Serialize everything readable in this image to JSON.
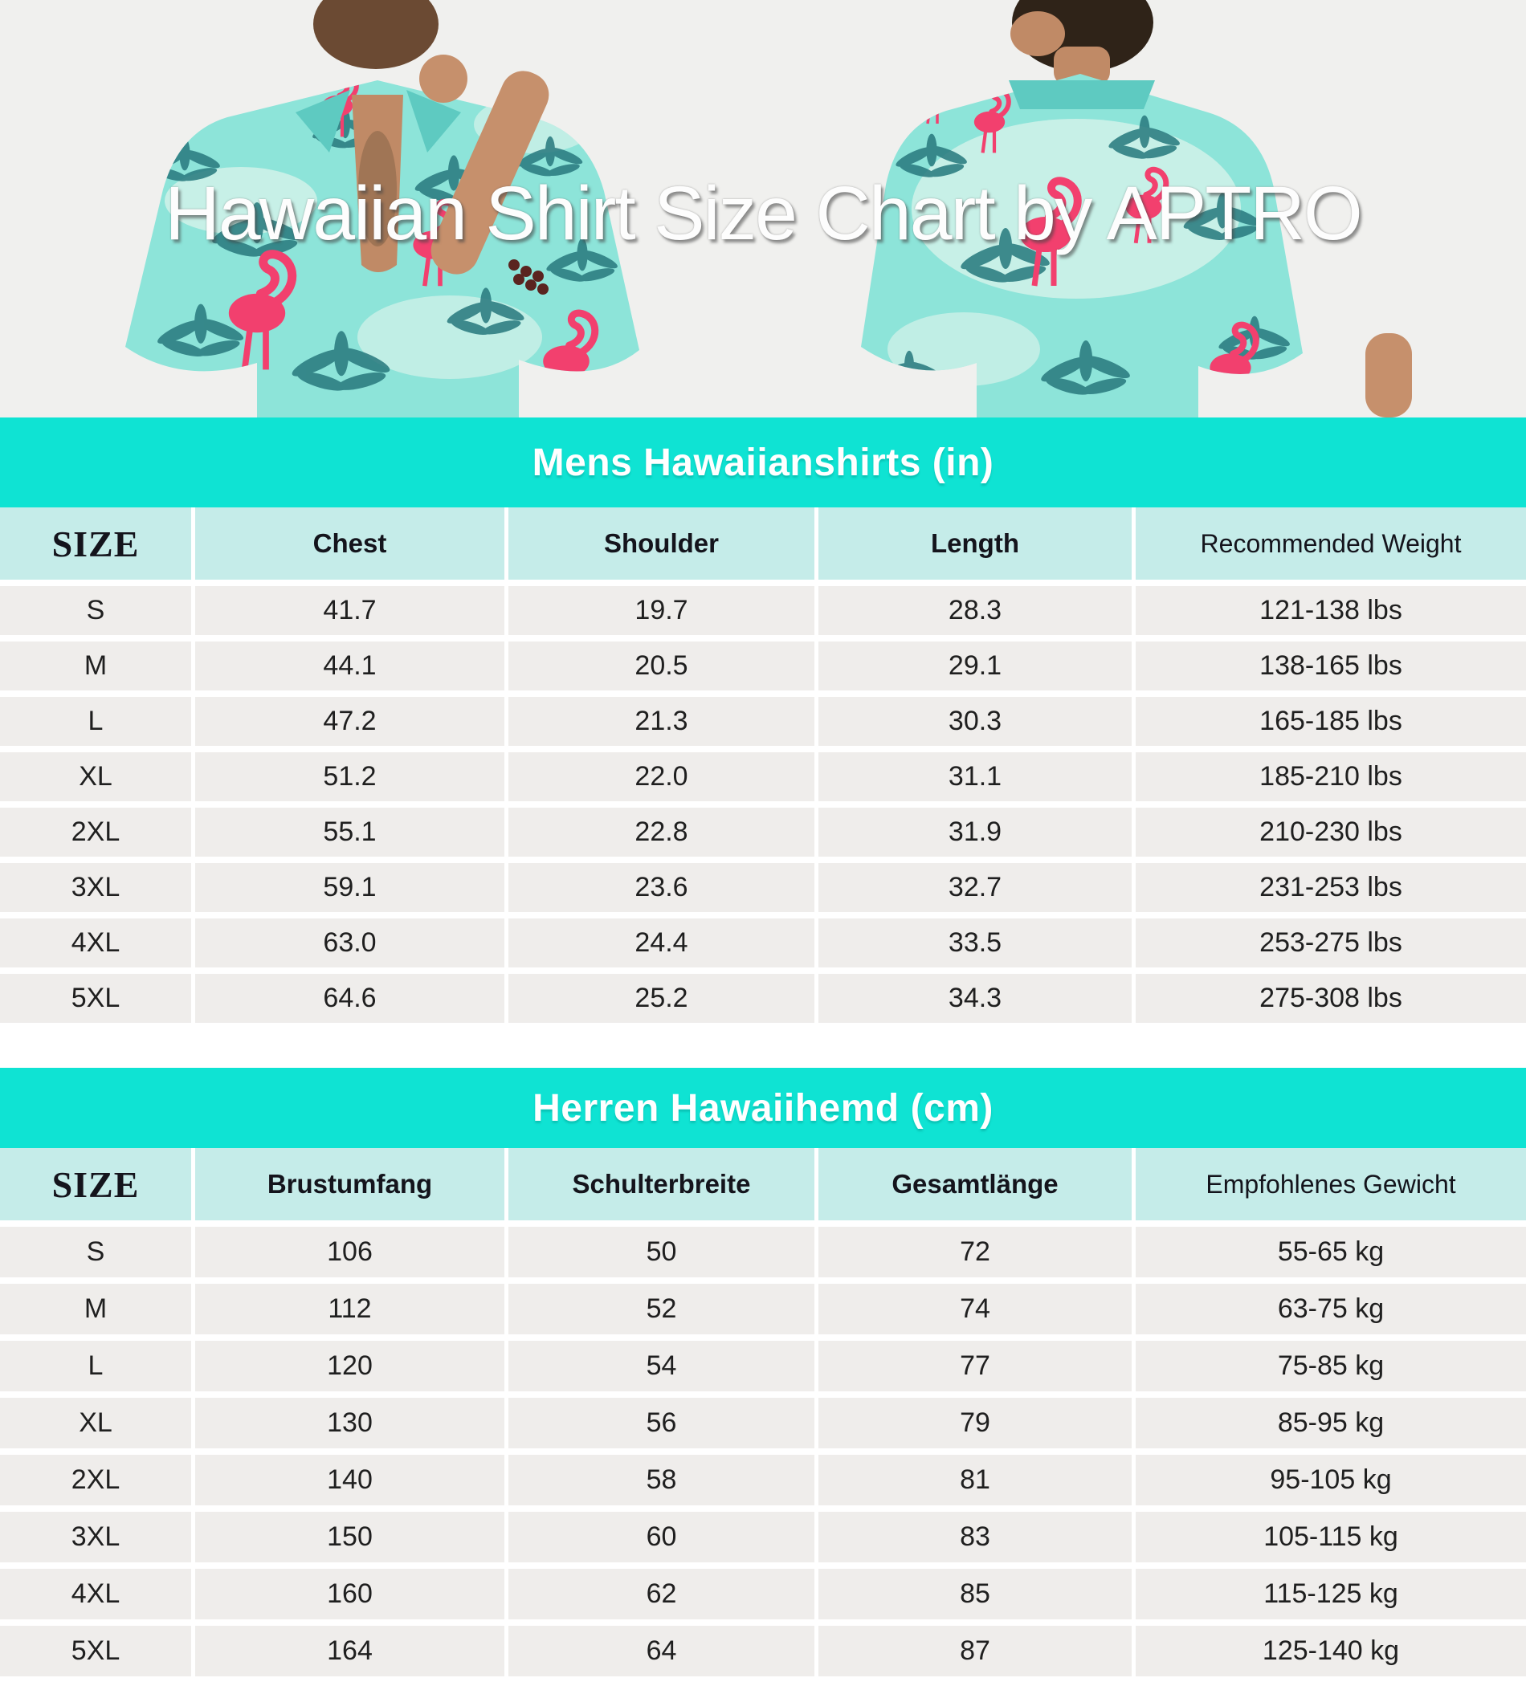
{
  "title": "Hawaiian Shirt Size Chart by APTRO",
  "colors": {
    "banner_teal": "#0fe3d3",
    "header_teal": "#c5ece9",
    "row_gray": "#efedeb",
    "photo_background": "#f0f0ee",
    "shirt_aqua": "#8de4d9",
    "flamingo_pink": "#f2406e",
    "palm_teal": "#2b7c80"
  },
  "tables": [
    {
      "title": "Mens Hawaiianshirts (in)",
      "headers": [
        "SIZE",
        "Chest",
        "Shoulder",
        "Length",
        "Recommended Weight"
      ],
      "rows": [
        [
          "S",
          "41.7",
          "19.7",
          "28.3",
          "121-138 lbs"
        ],
        [
          "M",
          "44.1",
          "20.5",
          "29.1",
          "138-165 lbs"
        ],
        [
          "L",
          "47.2",
          "21.3",
          "30.3",
          "165-185 lbs"
        ],
        [
          "XL",
          "51.2",
          "22.0",
          "31.1",
          "185-210 lbs"
        ],
        [
          "2XL",
          "55.1",
          "22.8",
          "31.9",
          "210-230 lbs"
        ],
        [
          "3XL",
          "59.1",
          "23.6",
          "32.7",
          "231-253 lbs"
        ],
        [
          "4XL",
          "63.0",
          "24.4",
          "33.5",
          "253-275 lbs"
        ],
        [
          "5XL",
          "64.6",
          "25.2",
          "34.3",
          "275-308 lbs"
        ]
      ]
    },
    {
      "title": "Herren Hawaiihemd (cm)",
      "headers": [
        "SIZE",
        "Brustumfang",
        "Schulterbreite",
        "Gesamtlänge",
        "Empfohlenes Gewicht"
      ],
      "rows": [
        [
          "S",
          "106",
          "50",
          "72",
          "55-65 kg"
        ],
        [
          "M",
          "112",
          "52",
          "74",
          "63-75 kg"
        ],
        [
          "L",
          "120",
          "54",
          "77",
          "75-85 kg"
        ],
        [
          "XL",
          "130",
          "56",
          "79",
          "85-95 kg"
        ],
        [
          "2XL",
          "140",
          "58",
          "81",
          "95-105 kg"
        ],
        [
          "3XL",
          "150",
          "60",
          "83",
          "105-115 kg"
        ],
        [
          "4XL",
          "160",
          "62",
          "85",
          "115-125 kg"
        ],
        [
          "5XL",
          "164",
          "64",
          "87",
          "125-140 kg"
        ]
      ]
    }
  ],
  "chart_data": [
    {
      "type": "table",
      "title": "Mens Hawaiianshirts (in)",
      "columns": [
        "SIZE",
        "Chest",
        "Shoulder",
        "Length",
        "Recommended Weight"
      ],
      "rows": [
        [
          "S",
          41.7,
          19.7,
          28.3,
          "121-138 lbs"
        ],
        [
          "M",
          44.1,
          20.5,
          29.1,
          "138-165 lbs"
        ],
        [
          "L",
          47.2,
          21.3,
          30.3,
          "165-185 lbs"
        ],
        [
          "XL",
          51.2,
          22.0,
          31.1,
          "185-210 lbs"
        ],
        [
          "2XL",
          55.1,
          22.8,
          31.9,
          "210-230 lbs"
        ],
        [
          "3XL",
          59.1,
          23.6,
          32.7,
          "231-253 lbs"
        ],
        [
          "4XL",
          63.0,
          24.4,
          33.5,
          "253-275 lbs"
        ],
        [
          "5XL",
          64.6,
          25.2,
          34.3,
          "275-308 lbs"
        ]
      ]
    },
    {
      "type": "table",
      "title": "Herren Hawaiihemd (cm)",
      "columns": [
        "SIZE",
        "Brustumfang",
        "Schulterbreite",
        "Gesamtlänge",
        "Empfohlenes Gewicht"
      ],
      "rows": [
        [
          "S",
          106,
          50,
          72,
          "55-65 kg"
        ],
        [
          "M",
          112,
          52,
          74,
          "63-75 kg"
        ],
        [
          "L",
          120,
          54,
          77,
          "75-85 kg"
        ],
        [
          "XL",
          130,
          56,
          79,
          "85-95 kg"
        ],
        [
          "2XL",
          140,
          58,
          81,
          "95-105 kg"
        ],
        [
          "3XL",
          150,
          60,
          83,
          "105-115 kg"
        ],
        [
          "4XL",
          160,
          62,
          85,
          "115-125 kg"
        ],
        [
          "5XL",
          164,
          64,
          87,
          "125-140 kg"
        ]
      ]
    }
  ]
}
